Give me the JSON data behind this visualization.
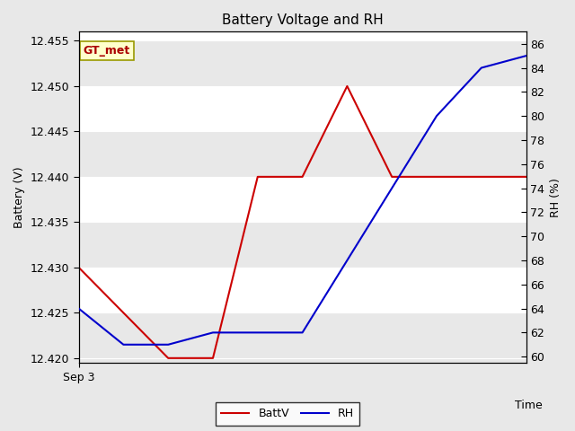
{
  "title": "Battery Voltage and RH",
  "xlabel": "Time",
  "ylabel_left": "Battery (V)",
  "ylabel_right": "RH (%)",
  "x_tick_label": "Sep 3",
  "annotation": "GT_met",
  "batt_x": [
    0,
    1,
    2,
    3,
    4,
    5,
    6,
    7,
    8,
    9,
    10
  ],
  "batt_y": [
    12.43,
    12.425,
    12.42,
    12.42,
    12.44,
    12.44,
    12.45,
    12.44,
    12.44,
    12.44,
    12.44
  ],
  "rh_x": [
    0,
    1,
    2,
    3,
    4,
    5,
    6,
    7,
    8,
    9,
    10
  ],
  "rh_y": [
    64,
    61,
    61,
    62,
    62,
    62,
    68,
    74,
    80,
    84,
    85
  ],
  "ylim_left": [
    12.4195,
    12.456
  ],
  "ylim_right": [
    59.5,
    87
  ],
  "left_ticks": [
    12.42,
    12.425,
    12.43,
    12.435,
    12.44,
    12.445,
    12.45,
    12.455
  ],
  "right_ticks": [
    60,
    62,
    64,
    66,
    68,
    70,
    72,
    74,
    76,
    78,
    80,
    82,
    84,
    86
  ],
  "batt_color": "#cc0000",
  "rh_color": "#0000cc",
  "bg_color": "#e8e8e8",
  "plot_bg_white": "#ffffff",
  "plot_bg_gray": "#e8e8e8",
  "grid_color": "#ffffff",
  "title_fontsize": 11,
  "axis_label_fontsize": 9,
  "tick_fontsize": 9,
  "legend_fontsize": 9,
  "line_width": 1.5,
  "annot_text_color": "#aa0000",
  "annot_bg_color": "#ffffcc",
  "annot_edge_color": "#999900"
}
